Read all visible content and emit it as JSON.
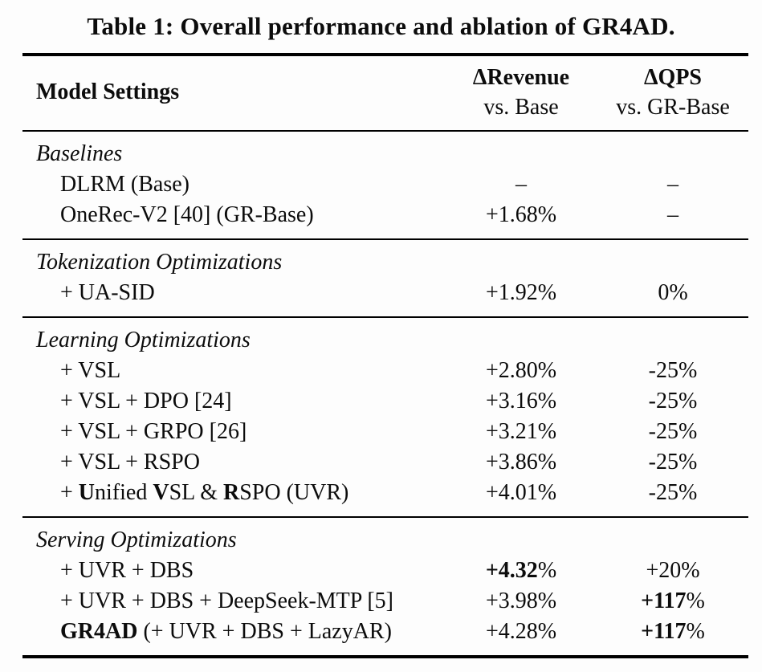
{
  "title": "Table 1: Overall performance and ablation of GR4AD.",
  "table": {
    "columns": [
      {
        "label": "Model Settings",
        "sublabel": ""
      },
      {
        "label": "ΔRevenue",
        "sublabel": "vs. Base"
      },
      {
        "label": "ΔQPS",
        "sublabel": "vs. GR-Base"
      }
    ],
    "sections": [
      {
        "header": "Baselines",
        "rows": [
          {
            "model": "DLRM (Base)",
            "revenue": "–",
            "qps": "–"
          },
          {
            "model": "OneRec-V2 [40] (GR-Base)",
            "revenue": "+1.68%",
            "qps": "–"
          }
        ]
      },
      {
        "header": "Tokenization Optimizations",
        "rows": [
          {
            "model": "+ UA-SID",
            "revenue": "+1.92%",
            "qps": "0%"
          }
        ]
      },
      {
        "header": "Learning Optimizations",
        "rows": [
          {
            "model": "+ VSL",
            "revenue": "+2.80%",
            "qps": "-25%"
          },
          {
            "model": "+ VSL + DPO [24]",
            "revenue": "+3.16%",
            "qps": "-25%"
          },
          {
            "model": "+ VSL + GRPO [26]",
            "revenue": "+3.21%",
            "qps": "-25%"
          },
          {
            "model": "+ VSL + RSPO",
            "revenue": "+3.86%",
            "qps": "-25%"
          },
          {
            "model": "+ **U**nified **V**SL & **R**SPO (UVR)",
            "revenue": "+4.01%",
            "qps": "-25%"
          }
        ]
      },
      {
        "header": "Serving Optimizations",
        "rows": [
          {
            "model": "+ UVR + DBS",
            "revenue": "**+4.32**%",
            "qps": "+20%"
          },
          {
            "model": "+ UVR + DBS + DeepSeek-MTP [5]",
            "revenue": "+3.98%",
            "qps": "**+117**%"
          },
          {
            "model": "**GR4AD** (+ UVR + DBS + LazyAR)",
            "revenue": "+4.28%",
            "qps": "**+117**%"
          }
        ]
      }
    ]
  },
  "colors": {
    "text": "#0c0c0c",
    "rule": "#000000",
    "background": "#fdfdfd"
  }
}
